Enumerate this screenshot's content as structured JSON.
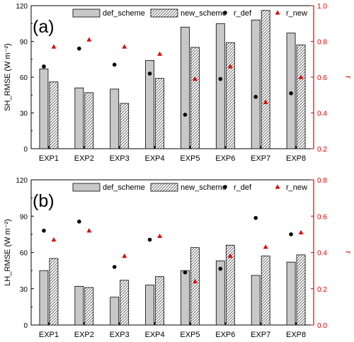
{
  "chart_data": [
    {
      "type": "bar",
      "panel_label": "(a)",
      "categories": [
        "EXP1",
        "EXP2",
        "EXP3",
        "EXP4",
        "EXP5",
        "EXP6",
        "EXP7",
        "EXP8"
      ],
      "ylabel": "SH_RMSE (W m⁻²)",
      "y2label": "r",
      "ylim": [
        0,
        120
      ],
      "yticks": [
        0,
        30,
        60,
        90,
        120
      ],
      "y2lim": [
        0.2,
        1.0
      ],
      "y2ticks": [
        0.2,
        0.4,
        0.6,
        0.8,
        1.0
      ],
      "series": [
        {
          "name": "def_scheme",
          "kind": "bar",
          "fill": "#c8c8c8",
          "values": [
            67,
            51,
            50,
            74,
            102,
            105,
            108,
            97
          ]
        },
        {
          "name": "new_scheme",
          "kind": "bar-hatched",
          "fill": "#ffffff",
          "values": [
            56,
            47,
            38,
            59,
            85,
            89,
            116,
            87
          ]
        },
        {
          "name": "r_def",
          "kind": "marker-circle",
          "axis": "right",
          "color": "#000000",
          "values": [
            0.66,
            0.76,
            0.67,
            0.62,
            0.39,
            0.59,
            0.49,
            0.51
          ]
        },
        {
          "name": "r_new",
          "kind": "marker-triangle",
          "axis": "right",
          "color": "#e00000",
          "values": [
            0.77,
            0.81,
            0.77,
            0.73,
            0.59,
            0.66,
            0.46,
            0.6
          ]
        }
      ],
      "legend_placement": "top",
      "grid": false
    },
    {
      "type": "bar",
      "panel_label": "(b)",
      "categories": [
        "EXP1",
        "EXP2",
        "EXP3",
        "EXP4",
        "EXP5",
        "EXP6",
        "EXP7",
        "EXP8"
      ],
      "ylabel": "LH_RMSE (W m⁻²)",
      "y2label": "r",
      "ylim": [
        0,
        120
      ],
      "yticks": [
        0,
        30,
        60,
        90,
        120
      ],
      "y2lim": [
        0,
        0.8
      ],
      "y2ticks": [
        0.0,
        0.2,
        0.4,
        0.6,
        0.8
      ],
      "series": [
        {
          "name": "def_scheme",
          "kind": "bar",
          "fill": "#c8c8c8",
          "values": [
            45,
            32,
            23,
            33,
            45,
            53,
            41,
            52
          ]
        },
        {
          "name": "new_scheme",
          "kind": "bar-hatched",
          "fill": "#ffffff",
          "values": [
            55,
            31,
            37,
            40,
            64,
            66,
            57,
            58
          ]
        },
        {
          "name": "r_def",
          "kind": "marker-circle",
          "axis": "right",
          "color": "#000000",
          "values": [
            0.52,
            0.57,
            0.32,
            0.47,
            0.29,
            0.31,
            0.59,
            0.5
          ]
        },
        {
          "name": "r_new",
          "kind": "marker-triangle",
          "axis": "right",
          "color": "#e00000",
          "values": [
            0.47,
            0.52,
            0.38,
            0.49,
            0.24,
            0.38,
            0.43,
            0.51
          ]
        }
      ],
      "legend_placement": "top",
      "grid": false
    }
  ]
}
